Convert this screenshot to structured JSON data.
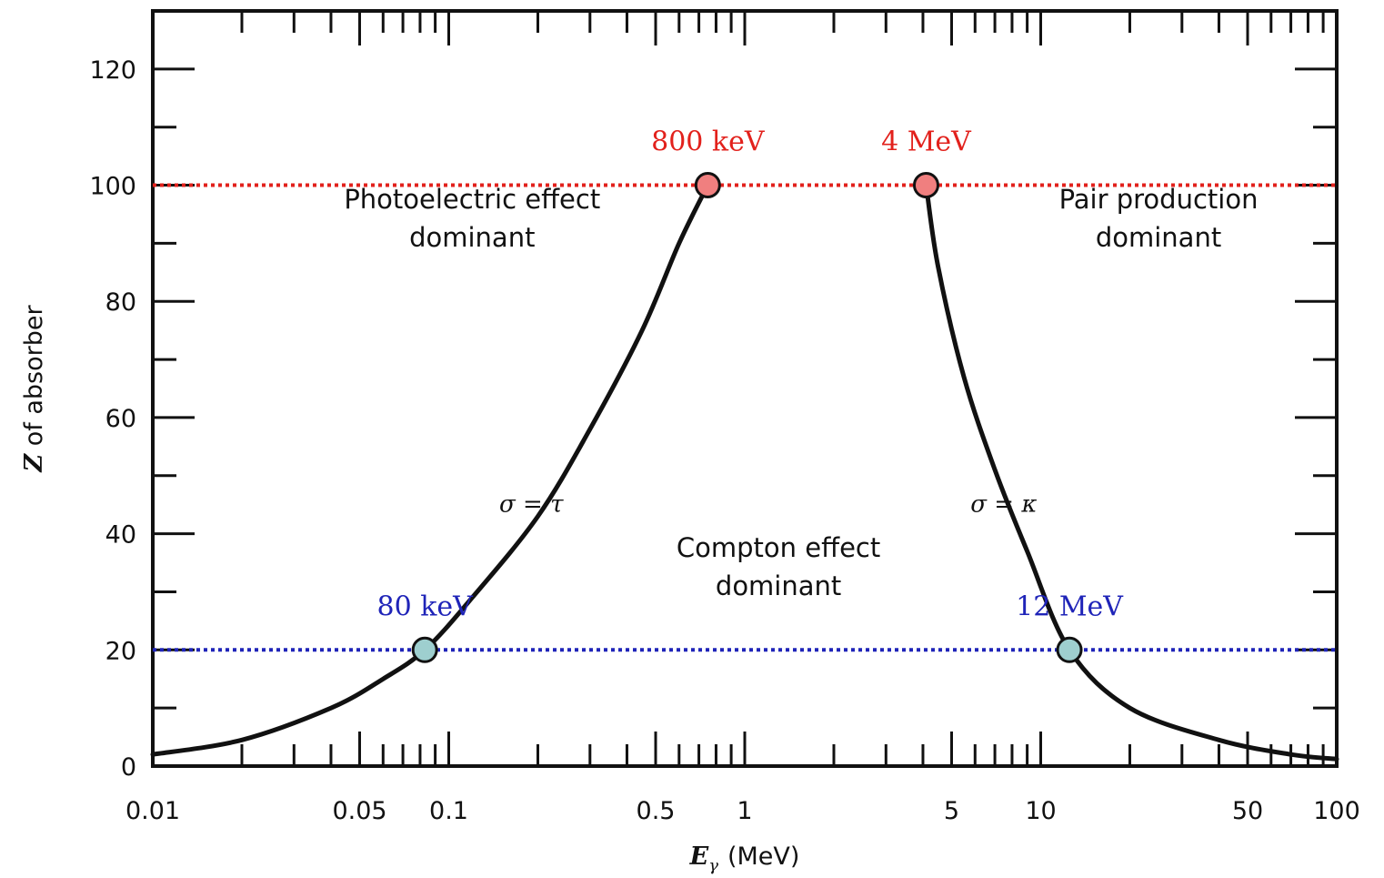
{
  "chart_data": {
    "type": "line",
    "xlabel": "Eγ (MeV)",
    "xlabel_var": "E",
    "xlabel_sub": "γ",
    "xlabel_unit": "(MeV)",
    "ylabel": "Z of absorber",
    "ylabel_var": "Z",
    "ylabel_rest": " of absorber",
    "x_scale": "log",
    "xlim": [
      0.01,
      100
    ],
    "ylim": [
      0,
      130
    ],
    "x_ticks": [
      {
        "value": 0.01,
        "label": "0.01"
      },
      {
        "value": 0.05,
        "label": "0.05"
      },
      {
        "value": 0.1,
        "label": "0.1"
      },
      {
        "value": 0.5,
        "label": "0.5"
      },
      {
        "value": 1,
        "label": "1"
      },
      {
        "value": 5,
        "label": "5"
      },
      {
        "value": 10,
        "label": "10"
      },
      {
        "value": 50,
        "label": "50"
      },
      {
        "value": 100,
        "label": "100"
      }
    ],
    "y_ticks": [
      {
        "value": 0,
        "label": "0"
      },
      {
        "value": 20,
        "label": "20"
      },
      {
        "value": 40,
        "label": "40"
      },
      {
        "value": 60,
        "label": "60"
      },
      {
        "value": 80,
        "label": "80"
      },
      {
        "value": 100,
        "label": "100"
      },
      {
        "value": 120,
        "label": "120"
      }
    ],
    "series": [
      {
        "equation": "σ = τ",
        "points": [
          [
            0.01,
            2
          ],
          [
            0.02,
            4.5
          ],
          [
            0.04,
            10
          ],
          [
            0.06,
            15
          ],
          [
            0.083,
            20
          ],
          [
            0.12,
            29
          ],
          [
            0.2,
            43
          ],
          [
            0.3,
            58
          ],
          [
            0.45,
            75
          ],
          [
            0.6,
            90
          ],
          [
            0.75,
            100
          ]
        ]
      },
      {
        "equation": "σ = κ",
        "points": [
          [
            4.1,
            100
          ],
          [
            4.5,
            86
          ],
          [
            5.5,
            67
          ],
          [
            7,
            51
          ],
          [
            9,
            37
          ],
          [
            12.5,
            20
          ],
          [
            20,
            10
          ],
          [
            40,
            4.5
          ],
          [
            70,
            2
          ],
          [
            100,
            1.2
          ]
        ]
      }
    ],
    "regions": [
      {
        "lines": [
          "Photoelectric effect",
          "dominant"
        ],
        "x": 0.12,
        "y": 96
      },
      {
        "lines": [
          "Compton effect",
          "dominant"
        ],
        "x": 1.3,
        "y": 36
      },
      {
        "lines": [
          "Pair production",
          "dominant"
        ],
        "x": 25,
        "y": 96
      }
    ],
    "reference_lines": [
      {
        "z": 100,
        "color": "#e2211c"
      },
      {
        "z": 20,
        "color": "#1f24b8"
      }
    ],
    "markers": [
      {
        "label": "800 keV",
        "x": 0.75,
        "y": 100,
        "fill": "#f07f7f",
        "text_color": "#e2211c",
        "label_align": "center"
      },
      {
        "label": "4 MeV",
        "x": 4.1,
        "y": 100,
        "fill": "#f07f7f",
        "text_color": "#e2211c",
        "label_align": "center"
      },
      {
        "label": "80 keV",
        "x": 0.083,
        "y": 20,
        "fill": "#9ecfcf",
        "text_color": "#1f24b8",
        "label_align": "center"
      },
      {
        "label": "12 MeV",
        "x": 12.5,
        "y": 20,
        "fill": "#9ecfcf",
        "text_color": "#1f24b8",
        "label_align": "center"
      }
    ]
  }
}
